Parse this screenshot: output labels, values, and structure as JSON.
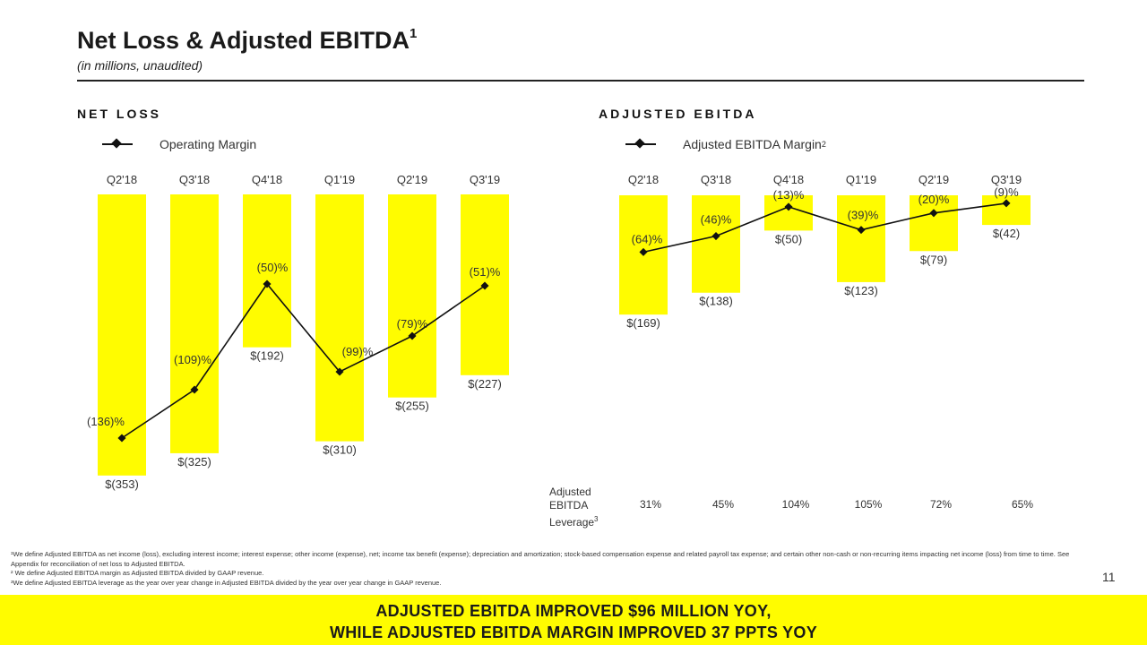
{
  "header": {
    "title": "Net Loss & Adjusted EBITDA",
    "title_sup": "1",
    "subtitle": "(in millions, unaudited)"
  },
  "colors": {
    "bar": "#fffc00",
    "line": "#111111",
    "text": "#333333"
  },
  "chart_data": [
    {
      "type": "bar",
      "title": "NET LOSS",
      "legend_label": "Operating Margin",
      "legend_placement": "top-left",
      "grid": false,
      "categories": [
        "Q2'18",
        "Q3'18",
        "Q4'18",
        "Q1'19",
        "Q2'19",
        "Q3'19"
      ],
      "series": [
        {
          "name": "Net Loss",
          "type": "bar",
          "values": [
            -353,
            -325,
            -192,
            -310,
            -255,
            -227
          ],
          "labels": [
            "$(353)",
            "$(325)",
            "$(192)",
            "$(310)",
            "$(255)",
            "$(227)"
          ]
        },
        {
          "name": "Operating Margin",
          "type": "line",
          "values": [
            -136,
            -109,
            -50,
            -99,
            -79,
            -51
          ],
          "labels": [
            "(136)%",
            "(109)%",
            "(50)%",
            "(99)%",
            "(79)%",
            "(51)%"
          ]
        }
      ]
    },
    {
      "type": "bar",
      "title": "ADJUSTED EBITDA",
      "legend_label": "Adjusted EBITDA Margin",
      "legend_sup": "2",
      "legend_placement": "top-left",
      "grid": false,
      "categories": [
        "Q2'18",
        "Q3'18",
        "Q4'18",
        "Q1'19",
        "Q2'19",
        "Q3'19"
      ],
      "series": [
        {
          "name": "Adjusted EBITDA",
          "type": "bar",
          "values": [
            -169,
            -138,
            -50,
            -123,
            -79,
            -42
          ],
          "labels": [
            "$(169)",
            "$(138)",
            "$(50)",
            "$(123)",
            "$(79)",
            "$(42)"
          ]
        },
        {
          "name": "Adjusted EBITDA Margin",
          "type": "line",
          "values": [
            -64,
            -46,
            -13,
            -39,
            -20,
            -9
          ],
          "labels": [
            "(64)%",
            "(46)%",
            "(13)%",
            "(39)%",
            "(20)%",
            "(9)%"
          ]
        }
      ],
      "leverage": {
        "label_lines": [
          "Adjusted",
          "EBITDA",
          "Leverage"
        ],
        "label_sup": "3",
        "values": [
          "31%",
          "45%",
          "104%",
          "105%",
          "72%",
          "65%"
        ]
      }
    }
  ],
  "footnotes": [
    "¹We define Adjusted EBITDA as net income (loss), excluding interest income; interest expense; other income (expense), net; income tax benefit (expense); depreciation and amortization; stock-based compensation expense and related payroll tax expense; and certain other non-cash or non-recurring items impacting net income (loss) from time to time. See Appendix for reconciliation of net loss to Adjusted EBITDA.",
    "² We define Adjusted EBITDA margin as Adjusted EBITDA divided by GAAP revenue.",
    "³We define Adjusted EBITDA leverage as the year over year change in Adjusted EBITDA divided by the year over year change in GAAP revenue."
  ],
  "page_number": "11",
  "banner": {
    "line1": "ADJUSTED EBITDA IMPROVED $96 MILLION YOY,",
    "line2": "WHILE ADJUSTED EBITDA MARGIN IMPROVED 37 PPTS YOY"
  }
}
